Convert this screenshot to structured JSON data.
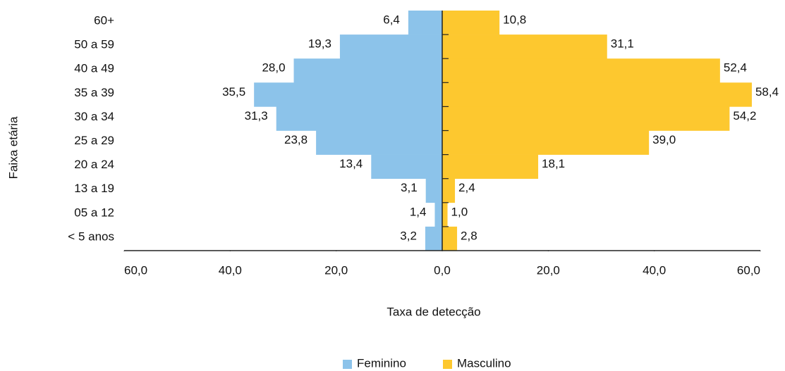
{
  "chart_data": {
    "type": "pyramid",
    "xlabel": "Taxa de detecção",
    "ylabel": "Faixa etária",
    "categories": [
      "60+",
      "50 a 59",
      "40 a 49",
      "35 a 39",
      "30 a 34",
      "25 a 29",
      "20 a 24",
      "13 a 19",
      "05 a 12",
      "< 5 anos"
    ],
    "series": [
      {
        "name": "Feminino",
        "color": "#8cc3ea",
        "values": [
          6.4,
          19.3,
          28.0,
          35.5,
          31.3,
          23.8,
          13.4,
          3.1,
          1.4,
          3.2
        ],
        "value_labels": [
          "6,4",
          "19,3",
          "28,0",
          "35,5",
          "31,3",
          "23,8",
          "13,4",
          "3,1",
          "1,4",
          "3,2"
        ]
      },
      {
        "name": "Masculino",
        "color": "#fdc82f",
        "values": [
          10.8,
          31.1,
          52.4,
          58.4,
          54.2,
          39.0,
          18.1,
          2.4,
          1.0,
          2.8
        ],
        "value_labels": [
          "10,8",
          "31,1",
          "52,4",
          "58,4",
          "54,2",
          "39,0",
          "18,1",
          "2,4",
          "1,0",
          "2,8"
        ]
      }
    ],
    "xlim": [
      -60,
      60
    ],
    "xticks": [
      {
        "value": -60,
        "label": "60,0"
      },
      {
        "value": -40,
        "label": "40,0"
      },
      {
        "value": -20,
        "label": "20,0"
      },
      {
        "value": 0,
        "label": "0,0"
      },
      {
        "value": 20,
        "label": "20,0"
      },
      {
        "value": 40,
        "label": "40,0"
      },
      {
        "value": 60,
        "label": "60,0"
      }
    ],
    "legend": "bottom"
  }
}
